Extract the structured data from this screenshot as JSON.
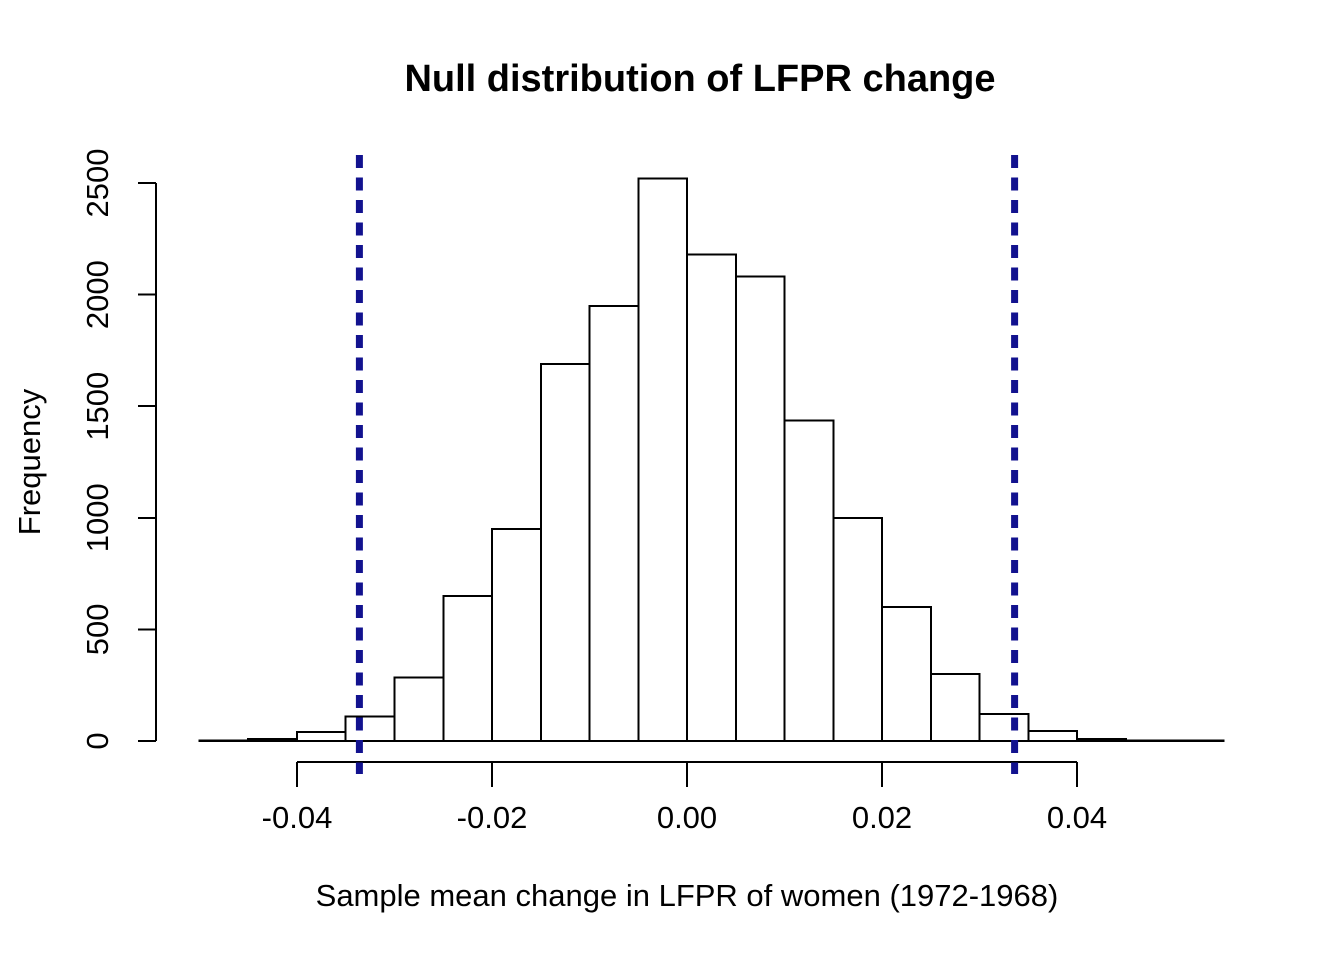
{
  "chart_data": {
    "type": "bar",
    "subtype": "histogram",
    "title": "Null distribution of LFPR change",
    "xlabel": "Sample mean change in LFPR of women (1972-1968)",
    "ylabel": "Frequency",
    "bin_start": -0.05,
    "bin_width": 0.005,
    "counts": [
      2,
      10,
      40,
      110,
      285,
      650,
      950,
      1690,
      1950,
      2520,
      2180,
      2080,
      1435,
      1000,
      600,
      300,
      120,
      45,
      10,
      3,
      2
    ],
    "x_ticks": [
      -0.04,
      -0.02,
      0,
      0.02,
      0.04
    ],
    "x_tick_labels": [
      "-0.04",
      "-0.02",
      "0.00",
      "0.02",
      "0.04"
    ],
    "y_ticks": [
      0,
      500,
      1000,
      1500,
      2000,
      2500
    ],
    "y_tick_labels": [
      "0",
      "500",
      "1000",
      "1500",
      "2000",
      "2500"
    ],
    "xlim": [
      -0.055,
      0.06
    ],
    "ylim": [
      0,
      2500
    ],
    "grid": false,
    "vlines": {
      "values": [
        -0.0336,
        0.0336
      ],
      "style": "dashed",
      "color": "#12128F"
    },
    "bar_fill": "#ffffff",
    "bar_stroke": "#000000",
    "axis_color": "#000000"
  }
}
